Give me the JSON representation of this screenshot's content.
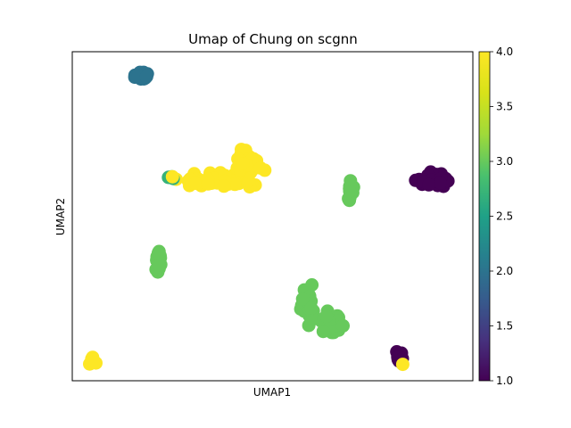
{
  "chart_data": {
    "type": "scatter",
    "title": "Umap of Chung on scgnn",
    "xlabel": "UMAP1",
    "ylabel": "UMAP2",
    "xlim": [
      0,
      100
    ],
    "ylim": [
      0,
      100
    ],
    "x_ticks_visible": false,
    "y_ticks_visible": false,
    "grid": false,
    "colorbar": {
      "cmap": "viridis",
      "range": [
        1.0,
        4.0
      ],
      "ticks": [
        "1.0",
        "1.5",
        "2.0",
        "2.5",
        "3.0",
        "3.5",
        "4.0"
      ]
    },
    "clusters": [
      {
        "value": 2.0,
        "cx": 17.5,
        "cy": 92.5,
        "sx": 1.6,
        "sy": 1.4,
        "n": 18
      },
      {
        "value": 4.0,
        "cx": 36,
        "cy": 61,
        "sx": 8,
        "sy": 1.5,
        "n": 55
      },
      {
        "value": 4.0,
        "cx": 44,
        "cy": 66,
        "sx": 2.5,
        "sy": 3.5,
        "n": 40
      },
      {
        "value": 2.7,
        "cx": 24.5,
        "cy": 61.5,
        "sx": 0.8,
        "sy": 0.5,
        "n": 4
      },
      {
        "value": 1.0,
        "cx": 90,
        "cy": 61,
        "sx": 3.5,
        "sy": 1.5,
        "n": 50
      },
      {
        "value": 3.0,
        "cx": 69.5,
        "cy": 57,
        "sx": 0.8,
        "sy": 2.5,
        "n": 12
      },
      {
        "value": 3.0,
        "cx": 21.5,
        "cy": 36,
        "sx": 0.8,
        "sy": 3,
        "n": 20
      },
      {
        "value": 3.0,
        "cx": 58.5,
        "cy": 22,
        "sx": 1.4,
        "sy": 5,
        "n": 35
      },
      {
        "value": 3.0,
        "cx": 64.5,
        "cy": 18,
        "sx": 2.5,
        "sy": 3,
        "n": 35
      },
      {
        "value": 1.0,
        "cx": 81.5,
        "cy": 7.5,
        "sx": 0.8,
        "sy": 1.5,
        "n": 14
      },
      {
        "value": 4.0,
        "cx": 5,
        "cy": 6,
        "sx": 0.6,
        "sy": 0.8,
        "n": 8
      }
    ],
    "points": [
      {
        "x": 25,
        "y": 62,
        "value": 4.0
      },
      {
        "x": 82.5,
        "y": 5,
        "value": 4.0
      }
    ]
  }
}
